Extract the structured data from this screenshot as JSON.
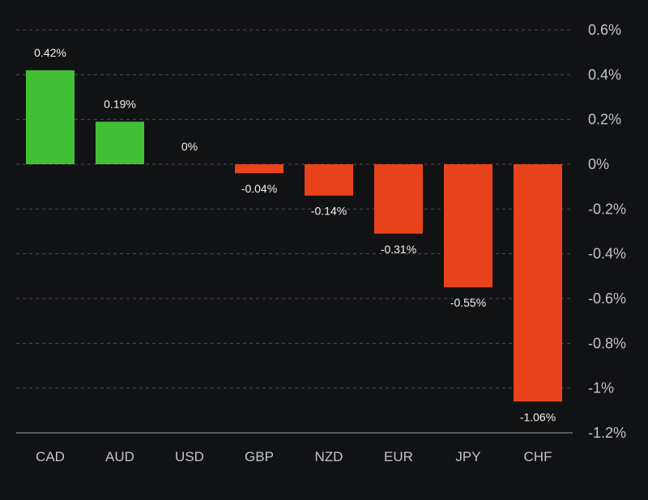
{
  "chart_data": {
    "type": "bar",
    "title": "",
    "xlabel": "",
    "ylabel": "",
    "categories": [
      "CAD",
      "AUD",
      "USD",
      "GBP",
      "NZD",
      "EUR",
      "JPY",
      "CHF"
    ],
    "values": [
      0.42,
      0.19,
      0,
      -0.04,
      -0.14,
      -0.31,
      -0.55,
      -1.06
    ],
    "value_labels": [
      "0.42%",
      "0.19%",
      "0%",
      "-0.04%",
      "-0.14%",
      "-0.31%",
      "-0.55%",
      "-1.06%"
    ],
    "unit": "%",
    "ylim": [
      -1.2,
      0.6
    ],
    "yticks": [
      0.6,
      0.4,
      0.2,
      0,
      -0.2,
      -0.4,
      -0.6,
      -0.8,
      -1.0,
      -1.2
    ],
    "ytick_labels": [
      "0.6%",
      "0.4%",
      "0.2%",
      "0%",
      "-0.2%",
      "-0.4%",
      "-0.6%",
      "-0.8%",
      "-1%",
      "-1.2%"
    ],
    "y_axis_position": "right",
    "grid": true,
    "legend": "none",
    "colors": {
      "positive": "#43bf36",
      "negative": "#e8431b",
      "background": "#111214",
      "tick_text": "#c3c4c8",
      "label_text": "#f2f2f2"
    }
  }
}
